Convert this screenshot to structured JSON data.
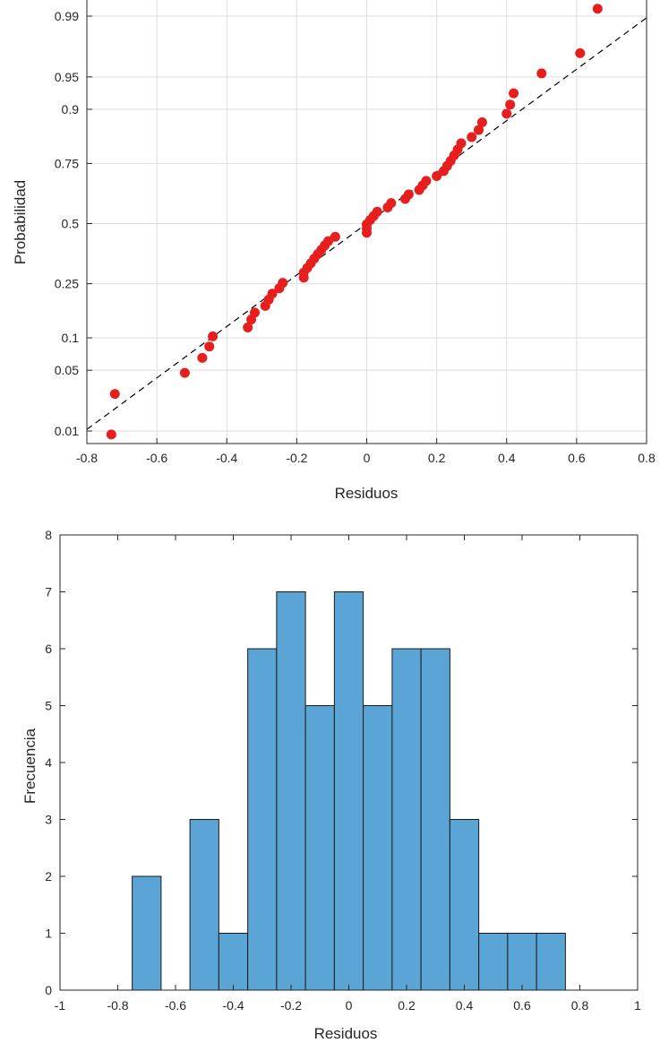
{
  "chart_data": [
    {
      "type": "scatter",
      "subtype": "normal-probability-plot",
      "title": "",
      "xlabel": "Residuos",
      "ylabel": "Probabilidad",
      "xlim": [
        -0.8,
        0.8
      ],
      "y_scale": "normal-probability",
      "grid": true,
      "marker_color": "#e61e1e",
      "reference_line": {
        "style": "dashed",
        "color": "#000000",
        "points": [
          [
            -0.8,
            0.0105
          ],
          [
            0.8,
            0.9895
          ]
        ]
      },
      "x_ticks": [
        -0.8,
        -0.6,
        -0.4,
        -0.2,
        0,
        0.2,
        0.4,
        0.6,
        0.8
      ],
      "x_tick_labels": [
        "-0.8",
        "-0.6",
        "-0.4",
        "-0.2",
        "0",
        "0.2",
        "0.4",
        "0.6",
        "0.8"
      ],
      "y_ticks": [
        0.01,
        0.05,
        0.1,
        0.25,
        0.5,
        0.75,
        0.9,
        0.95,
        0.99
      ],
      "y_tick_labels": [
        "0.01",
        "0.05",
        "0.1",
        "0.25",
        "0.5",
        "0.75",
        "0.9",
        "0.95",
        "0.99"
      ],
      "points": [
        [
          -0.73,
          0.009
        ],
        [
          -0.72,
          0.028
        ],
        [
          -0.52,
          0.047
        ],
        [
          -0.47,
          0.066
        ],
        [
          -0.45,
          0.084
        ],
        [
          -0.44,
          0.103
        ],
        [
          -0.34,
          0.122
        ],
        [
          -0.33,
          0.141
        ],
        [
          -0.32,
          0.159
        ],
        [
          -0.29,
          0.178
        ],
        [
          -0.28,
          0.197
        ],
        [
          -0.27,
          0.216
        ],
        [
          -0.25,
          0.234
        ],
        [
          -0.24,
          0.253
        ],
        [
          -0.18,
          0.272
        ],
        [
          -0.18,
          0.291
        ],
        [
          -0.17,
          0.309
        ],
        [
          -0.16,
          0.328
        ],
        [
          -0.15,
          0.347
        ],
        [
          -0.14,
          0.366
        ],
        [
          -0.13,
          0.384
        ],
        [
          -0.12,
          0.403
        ],
        [
          -0.11,
          0.422
        ],
        [
          -0.09,
          0.441
        ],
        [
          0.0,
          0.459
        ],
        [
          0.0,
          0.478
        ],
        [
          0.0,
          0.497
        ],
        [
          0.01,
          0.516
        ],
        [
          0.02,
          0.534
        ],
        [
          0.03,
          0.553
        ],
        [
          0.06,
          0.572
        ],
        [
          0.07,
          0.591
        ],
        [
          0.11,
          0.609
        ],
        [
          0.12,
          0.628
        ],
        [
          0.15,
          0.647
        ],
        [
          0.16,
          0.666
        ],
        [
          0.17,
          0.684
        ],
        [
          0.2,
          0.703
        ],
        [
          0.22,
          0.722
        ],
        [
          0.23,
          0.741
        ],
        [
          0.24,
          0.759
        ],
        [
          0.25,
          0.778
        ],
        [
          0.26,
          0.797
        ],
        [
          0.27,
          0.816
        ],
        [
          0.3,
          0.834
        ],
        [
          0.32,
          0.853
        ],
        [
          0.33,
          0.872
        ],
        [
          0.4,
          0.891
        ],
        [
          0.41,
          0.909
        ],
        [
          0.42,
          0.928
        ],
        [
          0.5,
          0.954
        ],
        [
          0.61,
          0.972
        ],
        [
          0.66,
          0.992
        ]
      ]
    },
    {
      "type": "bar",
      "subtype": "histogram",
      "title": "",
      "xlabel": "Residuos",
      "ylabel": "Frecuencia",
      "xlim": [
        -1,
        1
      ],
      "ylim": [
        0,
        8
      ],
      "grid": false,
      "bar_color": "#5ba4d6",
      "bin_edges": [
        -0.75,
        -0.65,
        -0.55,
        -0.45,
        -0.35,
        -0.25,
        -0.15,
        -0.05,
        0.05,
        0.15,
        0.25,
        0.35,
        0.45,
        0.55,
        0.65,
        0.75
      ],
      "values": [
        2,
        0,
        3,
        1,
        6,
        7,
        5,
        7,
        5,
        6,
        6,
        3,
        1,
        1,
        1
      ],
      "x_ticks": [
        -1,
        -0.8,
        -0.6,
        -0.4,
        -0.2,
        0,
        0.2,
        0.4,
        0.6,
        0.8,
        1
      ],
      "x_tick_labels": [
        "-1",
        "-0.8",
        "-0.6",
        "-0.4",
        "-0.2",
        "0",
        "0.2",
        "0.4",
        "0.6",
        "0.8",
        "1"
      ],
      "y_ticks": [
        0,
        1,
        2,
        3,
        4,
        5,
        6,
        7,
        8
      ],
      "y_tick_labels": [
        "0",
        "1",
        "2",
        "3",
        "4",
        "5",
        "6",
        "7",
        "8"
      ]
    }
  ]
}
